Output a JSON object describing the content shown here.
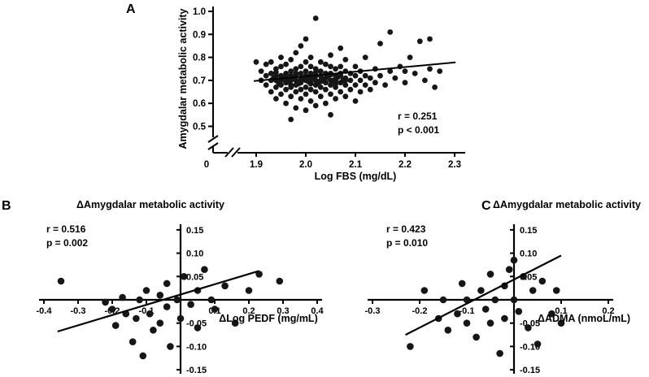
{
  "chart_data": [
    {
      "panel_label": "A",
      "type": "scatter",
      "title": "",
      "xlabel": "Log FBS (mg/dL)",
      "ylabel": "Amygdalar metabolic activity",
      "annotation": {
        "r": "r = 0.251",
        "p": "p < 0.001"
      },
      "xlim": [
        1.9,
        2.3
      ],
      "ylim": [
        0.5,
        1.0
      ],
      "grid": false,
      "axis_break": true,
      "origin_label": "0",
      "x_tick_values": [
        1.9,
        2.0,
        2.1,
        2.2,
        2.3
      ],
      "x_tick_labels": [
        "1.9",
        "2.0",
        "2.1",
        "2.2",
        "2.3"
      ],
      "y_tick_values": [
        1.0,
        0.9,
        0.8,
        0.7,
        0.6,
        0.5
      ],
      "y_tick_labels": [
        "1.0",
        "0.9",
        "0.8",
        "0.7",
        "0.6",
        "0.5"
      ],
      "trend_line": {
        "x": [
          1.895,
          2.302
        ],
        "y": [
          0.697,
          0.778
        ]
      },
      "points": [
        [
          1.9,
          0.78
        ],
        [
          1.91,
          0.7
        ],
        [
          1.91,
          0.74
        ],
        [
          1.92,
          0.68
        ],
        [
          1.92,
          0.72
        ],
        [
          1.92,
          0.77
        ],
        [
          1.93,
          0.65
        ],
        [
          1.93,
          0.7
        ],
        [
          1.93,
          0.73
        ],
        [
          1.93,
          0.78
        ],
        [
          1.94,
          0.62
        ],
        [
          1.94,
          0.67
        ],
        [
          1.94,
          0.7
        ],
        [
          1.94,
          0.72
        ],
        [
          1.94,
          0.75
        ],
        [
          1.95,
          0.64
        ],
        [
          1.95,
          0.68
        ],
        [
          1.95,
          0.7
        ],
        [
          1.95,
          0.72
        ],
        [
          1.95,
          0.76
        ],
        [
          1.95,
          0.8
        ],
        [
          1.96,
          0.6
        ],
        [
          1.96,
          0.66
        ],
        [
          1.96,
          0.69
        ],
        [
          1.96,
          0.71
        ],
        [
          1.96,
          0.73
        ],
        [
          1.96,
          0.77
        ],
        [
          1.97,
          0.53
        ],
        [
          1.97,
          0.63
        ],
        [
          1.97,
          0.67
        ],
        [
          1.97,
          0.7
        ],
        [
          1.97,
          0.72
        ],
        [
          1.97,
          0.74
        ],
        [
          1.97,
          0.79
        ],
        [
          1.98,
          0.58
        ],
        [
          1.98,
          0.65
        ],
        [
          1.98,
          0.68
        ],
        [
          1.98,
          0.7
        ],
        [
          1.98,
          0.72
        ],
        [
          1.98,
          0.75
        ],
        [
          1.98,
          0.82
        ],
        [
          1.99,
          0.62
        ],
        [
          1.99,
          0.66
        ],
        [
          1.99,
          0.69
        ],
        [
          1.99,
          0.71
        ],
        [
          1.99,
          0.73
        ],
        [
          1.99,
          0.76
        ],
        [
          1.99,
          0.85
        ],
        [
          2.0,
          0.57
        ],
        [
          2.0,
          0.64
        ],
        [
          2.0,
          0.67
        ],
        [
          2.0,
          0.7
        ],
        [
          2.0,
          0.72
        ],
        [
          2.0,
          0.74
        ],
        [
          2.0,
          0.78
        ],
        [
          2.0,
          0.88
        ],
        [
          2.01,
          0.61
        ],
        [
          2.01,
          0.66
        ],
        [
          2.01,
          0.69
        ],
        [
          2.01,
          0.71
        ],
        [
          2.01,
          0.73
        ],
        [
          2.01,
          0.76
        ],
        [
          2.01,
          0.8
        ],
        [
          2.02,
          0.59
        ],
        [
          2.02,
          0.65
        ],
        [
          2.02,
          0.68
        ],
        [
          2.02,
          0.7
        ],
        [
          2.02,
          0.72
        ],
        [
          2.02,
          0.75
        ],
        [
          2.02,
          0.97
        ],
        [
          2.03,
          0.63
        ],
        [
          2.03,
          0.67
        ],
        [
          2.03,
          0.7
        ],
        [
          2.03,
          0.72
        ],
        [
          2.03,
          0.74
        ],
        [
          2.03,
          0.78
        ],
        [
          2.04,
          0.6
        ],
        [
          2.04,
          0.66
        ],
        [
          2.04,
          0.69
        ],
        [
          2.04,
          0.71
        ],
        [
          2.04,
          0.73
        ],
        [
          2.04,
          0.77
        ],
        [
          2.05,
          0.55
        ],
        [
          2.05,
          0.64
        ],
        [
          2.05,
          0.68
        ],
        [
          2.05,
          0.7
        ],
        [
          2.05,
          0.73
        ],
        [
          2.05,
          0.76
        ],
        [
          2.05,
          0.81
        ],
        [
          2.06,
          0.62
        ],
        [
          2.06,
          0.67
        ],
        [
          2.06,
          0.7
        ],
        [
          2.06,
          0.72
        ],
        [
          2.06,
          0.75
        ],
        [
          2.07,
          0.65
        ],
        [
          2.07,
          0.69
        ],
        [
          2.07,
          0.72
        ],
        [
          2.07,
          0.76
        ],
        [
          2.07,
          0.84
        ],
        [
          2.08,
          0.63
        ],
        [
          2.08,
          0.68
        ],
        [
          2.08,
          0.71
        ],
        [
          2.08,
          0.74
        ],
        [
          2.08,
          0.79
        ],
        [
          2.09,
          0.66
        ],
        [
          2.09,
          0.7
        ],
        [
          2.09,
          0.73
        ],
        [
          2.1,
          0.61
        ],
        [
          2.1,
          0.68
        ],
        [
          2.1,
          0.72
        ],
        [
          2.1,
          0.76
        ],
        [
          2.11,
          0.65
        ],
        [
          2.11,
          0.7
        ],
        [
          2.11,
          0.74
        ],
        [
          2.12,
          0.68
        ],
        [
          2.12,
          0.72
        ],
        [
          2.12,
          0.8
        ],
        [
          2.13,
          0.66
        ],
        [
          2.13,
          0.71
        ],
        [
          2.14,
          0.69
        ],
        [
          2.14,
          0.75
        ],
        [
          2.15,
          0.72
        ],
        [
          2.15,
          0.86
        ],
        [
          2.16,
          0.68
        ],
        [
          2.17,
          0.74
        ],
        [
          2.17,
          0.91
        ],
        [
          2.18,
          0.71
        ],
        [
          2.19,
          0.76
        ],
        [
          2.2,
          0.69
        ],
        [
          2.2,
          0.74
        ],
        [
          2.21,
          0.8
        ],
        [
          2.22,
          0.73
        ],
        [
          2.23,
          0.87
        ],
        [
          2.24,
          0.7
        ],
        [
          2.25,
          0.75
        ],
        [
          2.25,
          0.88
        ],
        [
          2.26,
          0.67
        ],
        [
          2.27,
          0.74
        ],
        [
          1.935,
          0.71
        ],
        [
          1.945,
          0.69
        ],
        [
          1.955,
          0.705
        ],
        [
          1.965,
          0.695
        ],
        [
          1.975,
          0.715
        ],
        [
          1.985,
          0.685
        ],
        [
          1.995,
          0.705
        ],
        [
          2.005,
          0.695
        ],
        [
          2.015,
          0.71
        ],
        [
          2.025,
          0.69
        ],
        [
          2.035,
          0.705
        ],
        [
          2.045,
          0.72
        ],
        [
          2.055,
          0.7
        ],
        [
          2.065,
          0.715
        ],
        [
          2.075,
          0.7
        ],
        [
          1.96,
          0.725
        ],
        [
          1.97,
          0.68
        ],
        [
          1.98,
          0.73
        ],
        [
          1.99,
          0.7
        ],
        [
          2.0,
          0.715
        ],
        [
          2.01,
          0.685
        ],
        [
          2.02,
          0.735
        ],
        [
          2.03,
          0.695
        ],
        [
          2.04,
          0.71
        ],
        [
          2.05,
          0.725
        ],
        [
          1.95,
          0.715
        ],
        [
          1.94,
          0.735
        ],
        [
          2.06,
          0.685
        ],
        [
          2.07,
          0.73
        ],
        [
          2.08,
          0.7
        ]
      ]
    },
    {
      "panel_label": "B",
      "type": "scatter",
      "title": "ΔAmygdalar metabolic activity",
      "xlabel": "ΔLog PEDF (mg/mL)",
      "ylabel": "",
      "annotation": {
        "r": "r = 0.516",
        "p": "p = 0.002"
      },
      "xlim": [
        -0.4,
        0.4
      ],
      "ylim": [
        -0.15,
        0.15
      ],
      "grid": false,
      "axis_break": false,
      "x_tick_values": [
        -0.4,
        -0.3,
        -0.2,
        -0.1,
        0.1,
        0.2,
        0.3,
        0.4
      ],
      "x_tick_labels": [
        "-0.4",
        "-0.3",
        "-0.2",
        "-0.1",
        "0.1",
        "0.2",
        "0.3",
        "0.4"
      ],
      "y_tick_values": [
        0.15,
        0.1,
        0.05,
        -0.05,
        -0.1,
        -0.15
      ],
      "y_tick_labels": [
        "0.15",
        "0.10",
        "0.05",
        "-0.05",
        "-0.10",
        "-0.15"
      ],
      "trend_line": {
        "x": [
          -0.36,
          0.23
        ],
        "y": [
          -0.068,
          0.062
        ]
      },
      "points": [
        [
          -0.35,
          0.04
        ],
        [
          -0.22,
          -0.005
        ],
        [
          -0.2,
          -0.02
        ],
        [
          -0.19,
          -0.055
        ],
        [
          -0.17,
          0.005
        ],
        [
          -0.16,
          -0.03
        ],
        [
          -0.14,
          -0.09
        ],
        [
          -0.13,
          -0.04
        ],
        [
          -0.12,
          0
        ],
        [
          -0.11,
          -0.12
        ],
        [
          -0.1,
          0.02
        ],
        [
          -0.09,
          -0.03
        ],
        [
          -0.08,
          -0.065
        ],
        [
          -0.06,
          0.01
        ],
        [
          -0.06,
          -0.05
        ],
        [
          -0.04,
          0.035
        ],
        [
          -0.04,
          -0.015
        ],
        [
          -0.03,
          -0.1
        ],
        [
          -0.01,
          0
        ],
        [
          0,
          -0.04
        ],
        [
          0.01,
          0.05
        ],
        [
          0.03,
          -0.01
        ],
        [
          0.05,
          0.02
        ],
        [
          0.05,
          -0.06
        ],
        [
          0.07,
          0.065
        ],
        [
          0.09,
          0
        ],
        [
          0.1,
          -0.02
        ],
        [
          0.13,
          0.03
        ],
        [
          0.16,
          -0.05
        ],
        [
          0.2,
          0.02
        ],
        [
          0.23,
          0.055
        ],
        [
          0.29,
          0.04
        ]
      ]
    },
    {
      "panel_label": "C",
      "type": "scatter",
      "title": "ΔAmygdalar metabolic activity",
      "xlabel": "ΔADMA (nmoL/mL)",
      "ylabel": "",
      "annotation": {
        "r": "r = 0.423",
        "p": "p = 0.010"
      },
      "xlim": [
        -0.3,
        0.2
      ],
      "ylim": [
        -0.15,
        0.15
      ],
      "grid": false,
      "axis_break": false,
      "x_tick_values": [
        -0.3,
        -0.2,
        -0.1,
        0.1,
        0.2
      ],
      "x_tick_labels": [
        "-0.3",
        "-0.2",
        "-0.1",
        "0.1",
        "0.2"
      ],
      "y_tick_values": [
        0.15,
        0.1,
        0.05,
        -0.05,
        -0.1,
        -0.15
      ],
      "y_tick_labels": [
        "0.15",
        "0.10",
        "0.05",
        "-0.05",
        "-0.10",
        "-0.15"
      ],
      "trend_line": {
        "x": [
          -0.23,
          0.1
        ],
        "y": [
          -0.075,
          0.095
        ]
      },
      "points": [
        [
          -0.22,
          -0.1
        ],
        [
          -0.19,
          0.02
        ],
        [
          -0.16,
          -0.04
        ],
        [
          -0.15,
          0
        ],
        [
          -0.14,
          -0.065
        ],
        [
          -0.12,
          -0.03
        ],
        [
          -0.11,
          0.035
        ],
        [
          -0.1,
          -0.05
        ],
        [
          -0.1,
          0
        ],
        [
          -0.08,
          -0.08
        ],
        [
          -0.07,
          0.02
        ],
        [
          -0.06,
          -0.02
        ],
        [
          -0.05,
          0.055
        ],
        [
          -0.05,
          -0.05
        ],
        [
          -0.04,
          0
        ],
        [
          -0.03,
          -0.115
        ],
        [
          -0.02,
          0.03
        ],
        [
          -0.02,
          -0.04
        ],
        [
          -0.01,
          0.065
        ],
        [
          0,
          0.085
        ],
        [
          0,
          0
        ],
        [
          0.01,
          -0.025
        ],
        [
          0.02,
          0.05
        ],
        [
          0.03,
          -0.06
        ],
        [
          0.04,
          0.02
        ],
        [
          0.05,
          -0.095
        ],
        [
          0.06,
          0.04
        ],
        [
          0.08,
          -0.03
        ],
        [
          0.09,
          0.02
        ],
        [
          0.1,
          -0.05
        ]
      ]
    }
  ],
  "style": {
    "point_color": "#161616",
    "axis_color": "#000000",
    "background": "#ffffff"
  }
}
